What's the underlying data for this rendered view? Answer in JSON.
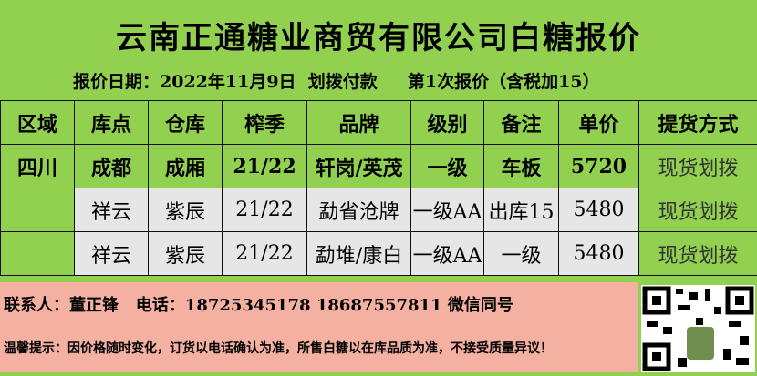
{
  "title": "云南正通糖业商贸有限公司白糖报价",
  "subtitle": "报价日期：2022年11月9日  划拨付款     第1次报价（含税加15）",
  "table": {
    "headers": [
      "区域",
      "库点",
      "仓库",
      "榨季",
      "品牌",
      "级别",
      "备注",
      "单价",
      "提货方式"
    ],
    "rows": [
      [
        "四川",
        "成都",
        "成厢",
        "21/22",
        "轩岗/英茂",
        "一级",
        "车板",
        "5720",
        "现货划拨"
      ],
      [
        "",
        "祥云",
        "紫辰",
        "21/22",
        "勐省沧牌",
        "一级AA",
        "出库15",
        "5480",
        "现货划拨"
      ],
      [
        "",
        "祥云",
        "紫辰",
        "21/22",
        "勐堆/康白",
        "一级AA",
        "一级",
        "5480",
        "现货划拨"
      ]
    ]
  },
  "footer": {
    "contact": "联系人：董正锋   电话：18725345178 18687557811 微信同号",
    "tip": "温馨提示：因价格随时变化，订货以电话确认为准，所售白糖以在库品质为准，不接受质量异议！"
  },
  "colors": {
    "green": "#92d050",
    "gray": "#e6e6e6",
    "pink": "#f4b0a0"
  }
}
